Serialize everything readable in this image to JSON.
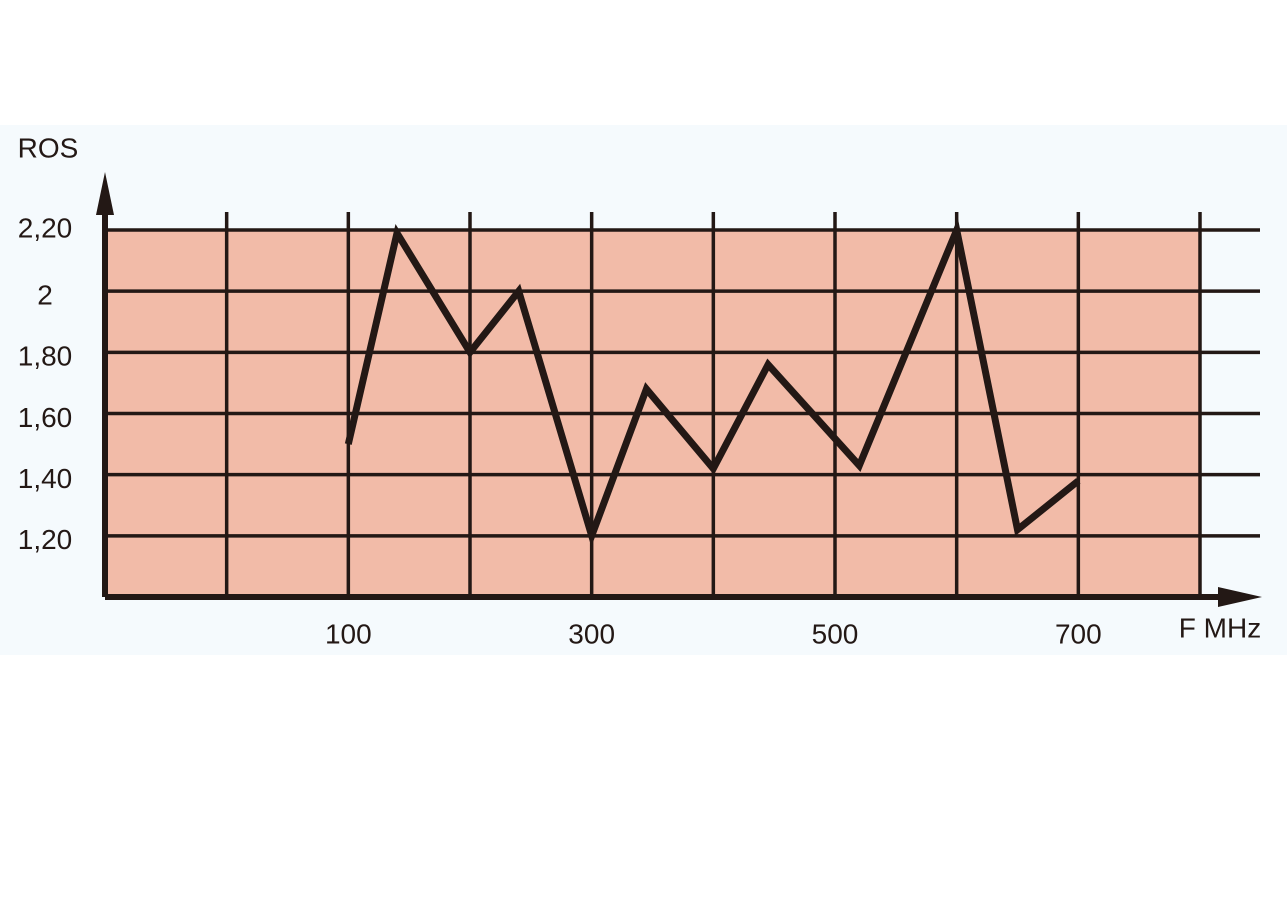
{
  "chart_data": {
    "type": "line",
    "y_label": "ROS",
    "x_label": "F MHz",
    "x": [
      100,
      140,
      200,
      240,
      300,
      345,
      400,
      445,
      520,
      600,
      650,
      700
    ],
    "values": [
      1.5,
      2.19,
      1.8,
      2.0,
      1.2,
      1.68,
      1.42,
      1.76,
      1.43,
      2.2,
      1.22,
      1.38
    ],
    "color": "#231815",
    "xlim": [
      -100,
      800
    ],
    "xticks": [
      100,
      300,
      500,
      700
    ],
    "xminorticks": [
      0,
      200,
      400,
      600,
      800
    ],
    "ylim": [
      1,
      2.2
    ],
    "yticks": [
      {
        "value": 1.2,
        "label": "1,20"
      },
      {
        "value": 1.4,
        "label": "1,40"
      },
      {
        "value": 1.6,
        "label": "1,60"
      },
      {
        "value": 1.8,
        "label": "1,80"
      },
      2,
      {
        "value": 2.2,
        "label": "2,20"
      }
    ],
    "grid": true,
    "plot_color": "#f2bba8"
  }
}
